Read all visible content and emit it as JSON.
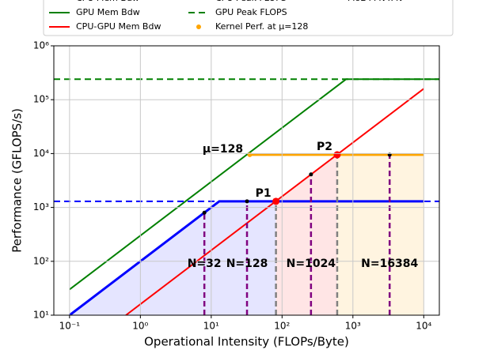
{
  "chart_data": {
    "type": "roofline",
    "xlabel": "Operational Intensity (FLOPs/Byte)",
    "ylabel": "Performance (GFLOPS/s)",
    "xscale": "log",
    "yscale": "log",
    "grid": true,
    "xlim": [
      0.06,
      16600
    ],
    "ylim": [
      10,
      1000000
    ],
    "xticks": [
      {
        "value": 0.1,
        "label": "10⁻¹"
      },
      {
        "value": 1,
        "label": "10⁰"
      },
      {
        "value": 10,
        "label": "10¹"
      },
      {
        "value": 100,
        "label": "10²"
      },
      {
        "value": 1000,
        "label": "10³"
      },
      {
        "value": 10000,
        "label": "10⁴"
      }
    ],
    "yticks": [
      {
        "value": 10,
        "label": "10¹"
      },
      {
        "value": 100,
        "label": "10²"
      },
      {
        "value": 1000,
        "label": "10³"
      },
      {
        "value": 10000,
        "label": "10⁴"
      },
      {
        "value": 100000,
        "label": "10⁵"
      },
      {
        "value": 1000000,
        "label": "10⁶"
      }
    ],
    "series": [
      {
        "name": "CPU Mem Bdw",
        "color": "#0000ff",
        "dash": "solid",
        "width": 3,
        "x": [
          0.1,
          13,
          10000
        ],
        "values": [
          10,
          1300,
          1300
        ]
      },
      {
        "name": "GPU Mem Bdw",
        "color": "#008000",
        "dash": "solid",
        "width": 2,
        "x": [
          0.1,
          800,
          16600
        ],
        "values": [
          30,
          240000,
          240000
        ]
      },
      {
        "name": "CPU-GPU Mem Bdw",
        "color": "#ff0000",
        "dash": "solid",
        "width": 2,
        "x": [
          0.625,
          10000
        ],
        "values": [
          10,
          160000
        ]
      },
      {
        "name": "CPU Peak FLOPS",
        "color": "#0000ff",
        "dash": "dashed",
        "width": 2,
        "x": [
          0.06,
          16600
        ],
        "values": [
          1300,
          1300
        ]
      },
      {
        "name": "GPU Peak FLOPS",
        "color": "#008000",
        "dash": "dashed",
        "width": 2,
        "x": [
          0.06,
          16600
        ],
        "values": [
          240000,
          240000
        ]
      },
      {
        "name": "Kernel Perf. at μ=128",
        "color": "#ffa500",
        "dash": "solid",
        "width": 3,
        "marker": "o",
        "x": [
          35,
          10000
        ],
        "values": [
          9500,
          9500
        ]
      }
    ],
    "moe": {
      "name": "MoE FFN x N",
      "color": "#800080",
      "x": [
        8,
        32,
        256,
        3300
      ],
      "values": [
        800,
        1300,
        4100,
        9500
      ],
      "labels": [
        "N=32",
        "N=128",
        "N=1024",
        "N=16384"
      ]
    },
    "points": [
      {
        "label": "P1",
        "x": 82,
        "y": 1300
      },
      {
        "label": "P2",
        "x": 600,
        "y": 9500
      }
    ],
    "kernel_label": "μ=128"
  }
}
